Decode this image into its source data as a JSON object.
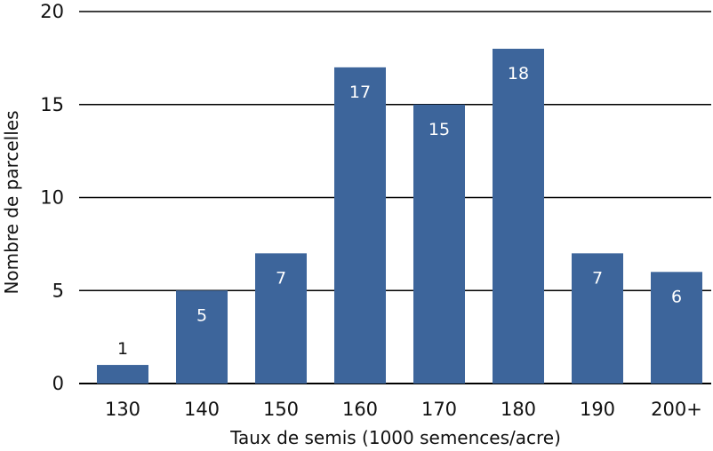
{
  "chart_data": {
    "type": "bar",
    "categories": [
      "130",
      "140",
      "150",
      "160",
      "170",
      "180",
      "190",
      "200+"
    ],
    "values": [
      1,
      5,
      7,
      17,
      15,
      18,
      7,
      6
    ],
    "title": "",
    "xlabel": "Taux de semis (1000 semences/acre)",
    "ylabel": "Nombre de parcelles",
    "ylim": [
      0,
      20
    ],
    "yticks": [
      0,
      5,
      10,
      15,
      20
    ],
    "grid": true,
    "legend": false,
    "bar_color": "#3d659b",
    "data_labels": true
  }
}
